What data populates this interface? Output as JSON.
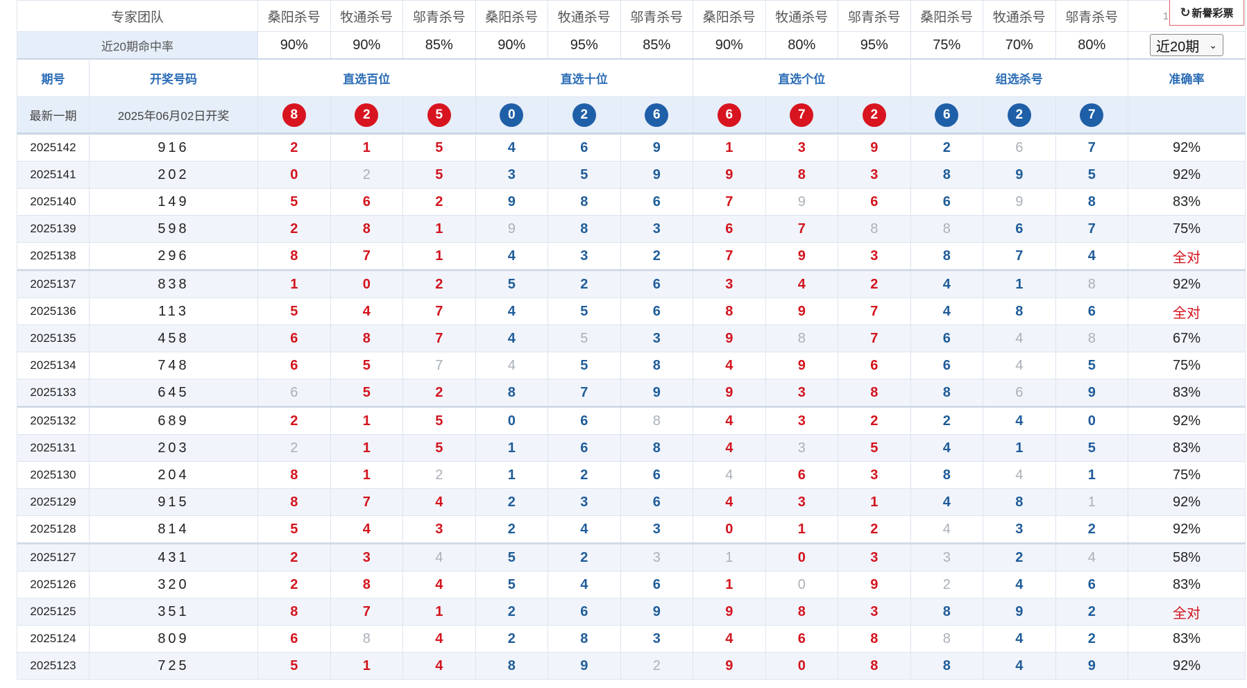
{
  "header": {
    "team_label": "专家团队",
    "experts": [
      "桑阳杀号",
      "牧通杀号",
      "邬青杀号",
      "桑阳杀号",
      "牧通杀号",
      "邬青杀号",
      "桑阳杀号",
      "牧通杀号",
      "邬青杀号",
      "桑阳杀号",
      "牧通杀号",
      "邬青杀号"
    ],
    "last_expert_partial": "1",
    "logo_text": "新譽彩票"
  },
  "rates": {
    "label": "近20期命中率",
    "values": [
      "90%",
      "90%",
      "85%",
      "90%",
      "95%",
      "85%",
      "90%",
      "80%",
      "95%",
      "75%",
      "70%",
      "80%"
    ],
    "select_value": "近20期"
  },
  "columns": {
    "period": "期号",
    "draw_number": "开奖号码",
    "groups": [
      "直选百位",
      "直选十位",
      "直选个位",
      "组选杀号"
    ],
    "accuracy": "准确率"
  },
  "latest": {
    "label": "最新一期",
    "date": "2025年06月02日开奖",
    "balls": [
      {
        "v": "8",
        "c": "red"
      },
      {
        "v": "2",
        "c": "red"
      },
      {
        "v": "5",
        "c": "red"
      },
      {
        "v": "0",
        "c": "blue"
      },
      {
        "v": "2",
        "c": "blue"
      },
      {
        "v": "6",
        "c": "blue"
      },
      {
        "v": "6",
        "c": "red"
      },
      {
        "v": "7",
        "c": "red"
      },
      {
        "v": "2",
        "c": "red"
      },
      {
        "v": "6",
        "c": "blue"
      },
      {
        "v": "2",
        "c": "blue"
      },
      {
        "v": "7",
        "c": "blue"
      }
    ]
  },
  "rows": [
    {
      "period": "2025142",
      "draw": "916",
      "kills": [
        "2",
        "1",
        "5",
        "4",
        "6",
        "9",
        "1",
        "3",
        "9",
        "2",
        "6",
        "7"
      ],
      "miss": [
        10
      ],
      "acc": "92%"
    },
    {
      "period": "2025141",
      "draw": "202",
      "kills": [
        "0",
        "2",
        "5",
        "3",
        "5",
        "9",
        "9",
        "8",
        "3",
        "8",
        "9",
        "5"
      ],
      "miss": [
        1
      ],
      "acc": "92%"
    },
    {
      "period": "2025140",
      "draw": "149",
      "kills": [
        "5",
        "6",
        "2",
        "9",
        "8",
        "6",
        "7",
        "9",
        "6",
        "6",
        "9",
        "8"
      ],
      "miss": [
        7,
        10
      ],
      "acc": "83%"
    },
    {
      "period": "2025139",
      "draw": "598",
      "kills": [
        "2",
        "8",
        "1",
        "9",
        "8",
        "3",
        "6",
        "7",
        "8",
        "8",
        "6",
        "7"
      ],
      "miss": [
        3,
        8,
        9
      ],
      "acc": "75%"
    },
    {
      "period": "2025138",
      "draw": "296",
      "kills": [
        "8",
        "7",
        "1",
        "4",
        "3",
        "2",
        "7",
        "9",
        "3",
        "8",
        "7",
        "4"
      ],
      "miss": [],
      "acc": "全对"
    },
    {
      "period": "2025137",
      "draw": "838",
      "kills": [
        "1",
        "0",
        "2",
        "5",
        "2",
        "6",
        "3",
        "4",
        "2",
        "4",
        "1",
        "8"
      ],
      "miss": [
        11
      ],
      "acc": "92%"
    },
    {
      "period": "2025136",
      "draw": "113",
      "kills": [
        "5",
        "4",
        "7",
        "4",
        "5",
        "6",
        "8",
        "9",
        "7",
        "4",
        "8",
        "6"
      ],
      "miss": [],
      "acc": "全对"
    },
    {
      "period": "2025135",
      "draw": "458",
      "kills": [
        "6",
        "8",
        "7",
        "4",
        "5",
        "3",
        "9",
        "8",
        "7",
        "6",
        "4",
        "8"
      ],
      "miss": [
        4,
        7,
        10,
        11
      ],
      "acc": "67%"
    },
    {
      "period": "2025134",
      "draw": "748",
      "kills": [
        "6",
        "5",
        "7",
        "4",
        "5",
        "8",
        "4",
        "9",
        "6",
        "6",
        "4",
        "5"
      ],
      "miss": [
        2,
        3,
        10
      ],
      "acc": "75%"
    },
    {
      "period": "2025133",
      "draw": "645",
      "kills": [
        "6",
        "5",
        "2",
        "8",
        "7",
        "9",
        "9",
        "3",
        "8",
        "8",
        "6",
        "9"
      ],
      "miss": [
        0,
        10
      ],
      "acc": "83%"
    },
    {
      "period": "2025132",
      "draw": "689",
      "kills": [
        "2",
        "1",
        "5",
        "0",
        "6",
        "8",
        "4",
        "3",
        "2",
        "2",
        "4",
        "0"
      ],
      "miss": [
        5
      ],
      "acc": "92%"
    },
    {
      "period": "2025131",
      "draw": "203",
      "kills": [
        "2",
        "1",
        "5",
        "1",
        "6",
        "8",
        "4",
        "3",
        "5",
        "4",
        "1",
        "5"
      ],
      "miss": [
        0,
        7
      ],
      "acc": "83%"
    },
    {
      "period": "2025130",
      "draw": "204",
      "kills": [
        "8",
        "1",
        "2",
        "1",
        "2",
        "6",
        "4",
        "6",
        "3",
        "8",
        "4",
        "1"
      ],
      "miss": [
        2,
        6,
        10
      ],
      "acc": "75%"
    },
    {
      "period": "2025129",
      "draw": "915",
      "kills": [
        "8",
        "7",
        "4",
        "2",
        "3",
        "6",
        "4",
        "3",
        "1",
        "4",
        "8",
        "1"
      ],
      "miss": [
        11
      ],
      "acc": "92%"
    },
    {
      "period": "2025128",
      "draw": "814",
      "kills": [
        "5",
        "4",
        "3",
        "2",
        "4",
        "3",
        "0",
        "1",
        "2",
        "4",
        "3",
        "2"
      ],
      "miss": [
        9
      ],
      "acc": "92%"
    },
    {
      "period": "2025127",
      "draw": "431",
      "kills": [
        "2",
        "3",
        "4",
        "5",
        "2",
        "3",
        "1",
        "0",
        "3",
        "3",
        "2",
        "4"
      ],
      "miss": [
        2,
        5,
        6,
        9,
        11
      ],
      "acc": "58%"
    },
    {
      "period": "2025126",
      "draw": "320",
      "kills": [
        "2",
        "8",
        "4",
        "5",
        "4",
        "6",
        "1",
        "0",
        "9",
        "2",
        "4",
        "6"
      ],
      "miss": [
        7,
        9
      ],
      "acc": "83%"
    },
    {
      "period": "2025125",
      "draw": "351",
      "kills": [
        "8",
        "7",
        "1",
        "2",
        "6",
        "9",
        "9",
        "8",
        "3",
        "8",
        "9",
        "2"
      ],
      "miss": [],
      "acc": "全对"
    },
    {
      "period": "2025124",
      "draw": "809",
      "kills": [
        "6",
        "8",
        "4",
        "2",
        "8",
        "3",
        "4",
        "6",
        "8",
        "8",
        "4",
        "2"
      ],
      "miss": [
        1,
        9
      ],
      "acc": "83%"
    },
    {
      "period": "2025123",
      "draw": "725",
      "kills": [
        "5",
        "1",
        "4",
        "8",
        "9",
        "2",
        "9",
        "0",
        "8",
        "8",
        "4",
        "9"
      ],
      "miss": [
        5
      ],
      "acc": "92%"
    }
  ],
  "colors": {
    "red": "#d3131d",
    "blue": "#1f5c99",
    "gray": "#aab0b8",
    "header_blue": "#2a6cb6",
    "band": "#e6eef9"
  }
}
